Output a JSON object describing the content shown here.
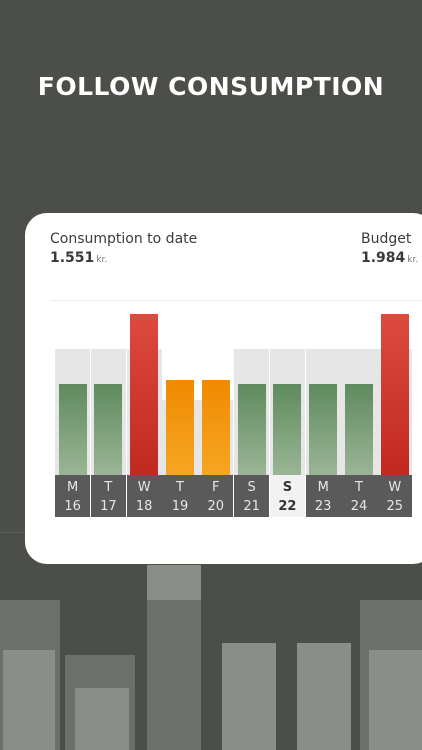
{
  "headline": "FOLLOW CONSUMPTION",
  "card": {
    "consumption_label": "Consumption to date",
    "consumption_value": "1.551",
    "budget_label": "Budget",
    "budget_value": "1.984",
    "unit": "kr."
  },
  "days": [
    {
      "letter": "M",
      "date": "16",
      "status": "green"
    },
    {
      "letter": "T",
      "date": "17",
      "status": "green"
    },
    {
      "letter": "W",
      "date": "18",
      "status": "red"
    },
    {
      "letter": "T",
      "date": "19",
      "status": "orange"
    },
    {
      "letter": "F",
      "date": "20",
      "status": "orange"
    },
    {
      "letter": "S",
      "date": "21",
      "status": "green"
    },
    {
      "letter": "S",
      "date": "22",
      "status": "green",
      "selected": true
    },
    {
      "letter": "M",
      "date": "23",
      "status": "green"
    },
    {
      "letter": "T",
      "date": "24",
      "status": "green"
    },
    {
      "letter": "W",
      "date": "25",
      "status": "red"
    }
  ],
  "colors": {
    "background": "#4c4f49",
    "green": "#5f8a5e",
    "orange": "#f08a00",
    "red": "#dd4a3f",
    "track": "#e6e6e6"
  }
}
